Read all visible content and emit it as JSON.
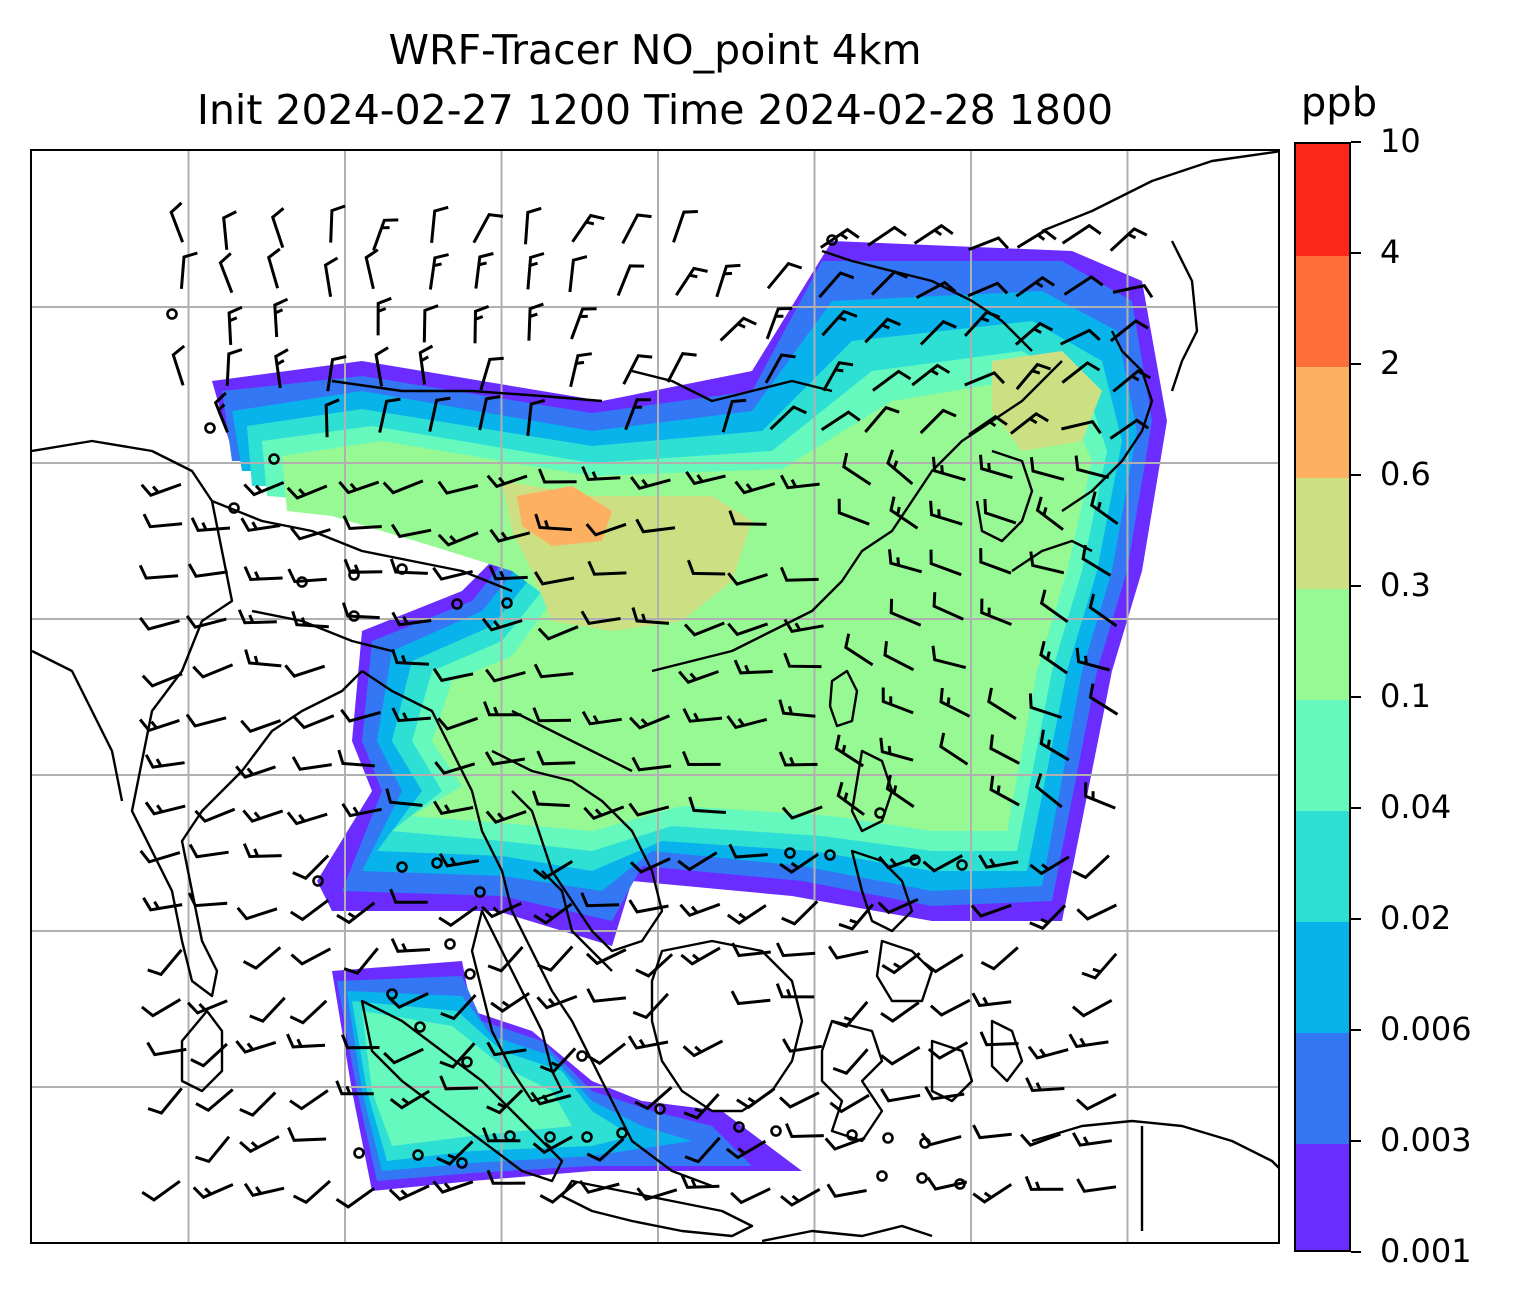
{
  "title": {
    "line1": "WRF-Tracer NO_point 4km",
    "line2": "Init 2024-02-27 1200 Time 2024-02-28 1800"
  },
  "colorbar": {
    "units": "ppb",
    "levels": [
      "0.001",
      "0.003",
      "0.006",
      "0.02",
      "0.04",
      "0.1",
      "0.3",
      "0.6",
      "2",
      "4",
      "10"
    ],
    "colors": [
      "#6a2cff",
      "#3377f5",
      "#08b2ea",
      "#2ee0d4",
      "#66f9be",
      "#97f993",
      "#cce083",
      "#fdb061",
      "#fe6e3a",
      "#fa2818"
    ]
  },
  "map": {
    "gridlines": "on",
    "gridline_color": "#b0b0b0",
    "coastline_color": "#000000",
    "calm_marker": "circle",
    "wind_symbol": "barbs"
  }
}
